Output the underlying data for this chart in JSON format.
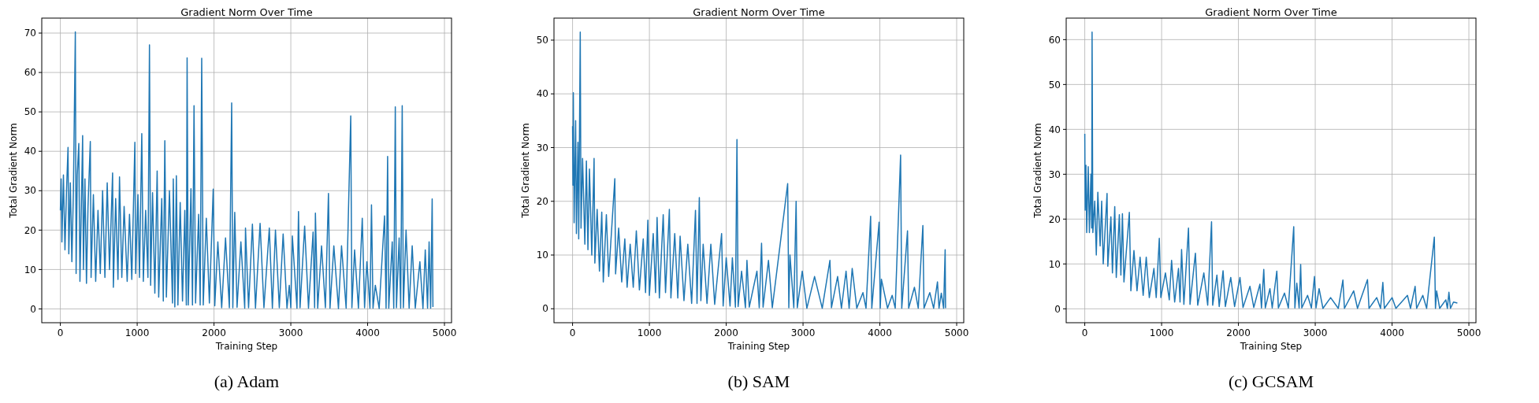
{
  "chart_data": [
    {
      "type": "line",
      "title": "Gradient Norm Over Time",
      "xlabel": "Training Step",
      "ylabel": "Total Gradient Norm",
      "annotations": [
        "(a) Adam"
      ],
      "color": "#1f77b4",
      "grid": true,
      "xlim": [
        -242,
        5092
      ],
      "xticks": [
        0,
        1000,
        2000,
        3000,
        4000,
        5000
      ],
      "ylim": [
        -3.5,
        73.8
      ],
      "yticks": [
        0,
        10,
        20,
        30,
        40,
        50,
        60,
        70
      ],
      "x": [
        0,
        10,
        20,
        40,
        60,
        80,
        100,
        110,
        130,
        150,
        170,
        195,
        205,
        220,
        240,
        255,
        275,
        290,
        300,
        320,
        340,
        360,
        390,
        400,
        430,
        460,
        490,
        520,
        550,
        580,
        610,
        640,
        680,
        690,
        720,
        750,
        770,
        800,
        830,
        870,
        900,
        930,
        970,
        980,
        1010,
        1030,
        1060,
        1080,
        1110,
        1140,
        1160,
        1175,
        1200,
        1230,
        1260,
        1280,
        1320,
        1340,
        1360,
        1380,
        1420,
        1460,
        1470,
        1490,
        1510,
        1530,
        1560,
        1590,
        1620,
        1640,
        1650,
        1665,
        1700,
        1720,
        1740,
        1760,
        1800,
        1820,
        1840,
        1860,
        1900,
        1940,
        1990,
        2010,
        2050,
        2100,
        2150,
        2200,
        2230,
        2245,
        2270,
        2300,
        2350,
        2400,
        2410,
        2450,
        2500,
        2540,
        2600,
        2650,
        2720,
        2760,
        2800,
        2850,
        2900,
        2950,
        2980,
        3000,
        3020,
        3080,
        3100,
        3120,
        3180,
        3230,
        3290,
        3310,
        3320,
        3350,
        3400,
        3450,
        3490,
        3510,
        3560,
        3620,
        3660,
        3720,
        3780,
        3795,
        3830,
        3880,
        3930,
        3960,
        3990,
        4030,
        4050,
        4070,
        4100,
        4150,
        4220,
        4240,
        4260,
        4275,
        4320,
        4340,
        4360,
        4375,
        4410,
        4430,
        4450,
        4465,
        4500,
        4540,
        4580,
        4620,
        4680,
        4720,
        4750,
        4780,
        4800,
        4820,
        4840,
        4850
      ],
      "values": [
        25,
        33,
        17,
        34,
        15,
        30,
        41,
        14,
        32,
        12,
        30,
        70.3,
        9,
        34,
        42,
        7,
        28,
        44,
        10,
        33,
        6.5,
        26,
        42.5,
        8,
        29,
        7,
        25,
        9,
        30,
        8,
        32,
        10,
        34.5,
        5.5,
        28,
        7.5,
        33.5,
        8,
        26,
        7,
        24,
        7.5,
        42.3,
        9,
        29,
        8,
        44.5,
        7,
        25,
        8,
        67,
        6,
        29.5,
        4,
        35,
        3,
        28,
        2,
        42.7,
        3,
        30,
        1.5,
        33,
        0.5,
        33.8,
        1,
        27,
        2,
        25,
        1,
        63.7,
        1,
        30.5,
        1,
        51.6,
        1.5,
        24,
        1,
        63.6,
        1,
        23,
        1.5,
        30.4,
        0.8,
        17,
        0.3,
        18,
        0.3,
        52.3,
        0.3,
        24.5,
        0.4,
        17,
        0.2,
        20.5,
        0.3,
        21.5,
        0.2,
        21.7,
        0.3,
        20.5,
        0.2,
        20,
        0.3,
        19,
        0.2,
        6,
        0.3,
        18.5,
        0.2,
        24.7,
        0.3,
        21,
        0.2,
        19.5,
        0.3,
        24.3,
        0.2,
        16,
        0.3,
        29.3,
        0.2,
        16,
        0.1,
        16,
        0.2,
        49,
        0.3,
        15,
        0.2,
        23,
        0.3,
        12,
        0.2,
        26.4,
        0.2,
        6,
        0.1,
        23.6,
        0.2,
        38.7,
        0.2,
        17,
        0.2,
        51.3,
        0.3,
        18,
        0.2,
        51.6,
        0.3,
        20,
        0.2,
        16,
        0.2,
        12,
        0.1,
        15,
        0.2,
        17,
        0.2,
        27.9,
        0.5
      ]
    },
    {
      "type": "line",
      "title": "Gradient Norm Over Time",
      "xlabel": "Training Step",
      "ylabel": "Total Gradient Norm",
      "annotations": [
        "(b) SAM"
      ],
      "color": "#1f77b4",
      "grid": true,
      "xlim": [
        -242,
        5092
      ],
      "xticks": [
        0,
        1000,
        2000,
        3000,
        4000,
        5000
      ],
      "ylim": [
        -2.6,
        54.1
      ],
      "yticks": [
        0,
        10,
        20,
        30,
        40,
        50
      ],
      "x": [
        0,
        5,
        10,
        20,
        40,
        50,
        70,
        80,
        100,
        110,
        130,
        160,
        180,
        200,
        220,
        250,
        280,
        290,
        320,
        350,
        380,
        400,
        440,
        470,
        550,
        560,
        600,
        640,
        680,
        710,
        750,
        790,
        830,
        870,
        920,
        950,
        980,
        1000,
        1050,
        1080,
        1100,
        1130,
        1180,
        1210,
        1260,
        1280,
        1330,
        1370,
        1400,
        1450,
        1500,
        1550,
        1600,
        1620,
        1650,
        1670,
        1700,
        1750,
        1800,
        1850,
        1940,
        1960,
        2000,
        2050,
        2080,
        2120,
        2140,
        2155,
        2200,
        2250,
        2270,
        2300,
        2400,
        2430,
        2460,
        2480,
        2550,
        2600,
        2800,
        2815,
        2830,
        2880,
        2910,
        2925,
        2990,
        3050,
        3150,
        3250,
        3350,
        3370,
        3450,
        3500,
        3560,
        3600,
        3640,
        3700,
        3780,
        3820,
        3880,
        3895,
        3990,
        4005,
        4020,
        4100,
        4160,
        4200,
        4270,
        4285,
        4360,
        4375,
        4450,
        4500,
        4560,
        4575,
        4650,
        4700,
        4750,
        4770,
        4800,
        4830,
        4850,
        4855
      ],
      "values": [
        34,
        23,
        40.2,
        16,
        35,
        14,
        31,
        13,
        51.5,
        15,
        28,
        12,
        27.5,
        11,
        26,
        10,
        28,
        8.5,
        18.5,
        7,
        18,
        5,
        17.5,
        6,
        24.2,
        6.5,
        15,
        5,
        13,
        4,
        12,
        4,
        14.5,
        3.5,
        13,
        3,
        16.5,
        2.5,
        14,
        3,
        17,
        2,
        17.5,
        3,
        18.5,
        2,
        14,
        2,
        13.5,
        1.5,
        12,
        1,
        18.3,
        1,
        20.7,
        1.5,
        12,
        1,
        12,
        0.8,
        14,
        0.5,
        9.5,
        0.5,
        9.5,
        0.3,
        31.5,
        0.4,
        7,
        0.2,
        9,
        0.3,
        7,
        0.2,
        12.2,
        0.3,
        9,
        0.2,
        23.3,
        0.2,
        10,
        0.2,
        20,
        0.2,
        7,
        0.1,
        6,
        0.1,
        9,
        0.2,
        6,
        0.1,
        7,
        0.1,
        7.5,
        0.1,
        3,
        0.1,
        17.2,
        0.1,
        16.1,
        0.1,
        5.5,
        0.1,
        2.5,
        0.1,
        28.6,
        0.1,
        14.5,
        0.1,
        4,
        0.1,
        15.5,
        0.1,
        3,
        0.1,
        5,
        0.1,
        2.9,
        0.1,
        11,
        0.1
      ]
    },
    {
      "type": "line",
      "title": "Gradient Norm Over Time",
      "xlabel": "Training Step",
      "ylabel": "Total Gradient Norm",
      "annotations": [
        "(c) GCSAM"
      ],
      "color": "#1f77b4",
      "grid": true,
      "xlim": [
        -242,
        5092
      ],
      "xticks": [
        0,
        1000,
        2000,
        3000,
        4000,
        5000
      ],
      "ylim": [
        -3.1,
        64.8
      ],
      "yticks": [
        0,
        10,
        20,
        30,
        40,
        50,
        60
      ],
      "x": [
        0,
        5,
        15,
        25,
        45,
        60,
        80,
        90,
        95,
        105,
        130,
        150,
        170,
        200,
        220,
        240,
        290,
        300,
        340,
        360,
        390,
        410,
        450,
        470,
        490,
        510,
        580,
        600,
        640,
        680,
        720,
        760,
        800,
        840,
        900,
        930,
        970,
        990,
        1050,
        1100,
        1130,
        1170,
        1220,
        1240,
        1260,
        1290,
        1350,
        1370,
        1440,
        1470,
        1550,
        1600,
        1650,
        1665,
        1720,
        1750,
        1800,
        1830,
        1900,
        1950,
        2020,
        2060,
        2150,
        2200,
        2280,
        2300,
        2330,
        2350,
        2410,
        2440,
        2500,
        2520,
        2600,
        2650,
        2720,
        2735,
        2760,
        2790,
        2810,
        2825,
        2900,
        2950,
        2990,
        3010,
        3050,
        3100,
        3200,
        3300,
        3360,
        3380,
        3500,
        3550,
        3680,
        3700,
        3800,
        3850,
        3880,
        3900,
        4000,
        4050,
        4200,
        4240,
        4300,
        4320,
        4400,
        4450,
        4550,
        4565,
        4580,
        4620,
        4700,
        4720,
        4740,
        4760,
        4800,
        4850
      ],
      "values": [
        39,
        22,
        32,
        17,
        31.7,
        17,
        30,
        18,
        61.7,
        17,
        24,
        12,
        26,
        14,
        24,
        10,
        25.7,
        9.5,
        20.5,
        8,
        22.8,
        7,
        21,
        7.5,
        21.2,
        6,
        21.5,
        4,
        13,
        4,
        11.5,
        3,
        11.5,
        2.5,
        9,
        2.5,
        15.7,
        2.5,
        8,
        2,
        10.8,
        1.5,
        9,
        1.5,
        13.2,
        1,
        18,
        1,
        12.4,
        0.8,
        8,
        0.8,
        19.4,
        0.8,
        7.5,
        0.5,
        8.5,
        0.5,
        7,
        0.5,
        7,
        0.3,
        5,
        0.3,
        5.5,
        0.2,
        8.8,
        0.2,
        4.5,
        0.2,
        8.4,
        0.2,
        3.5,
        0.2,
        18.3,
        0.2,
        5.7,
        0.2,
        9.9,
        0.2,
        3,
        0.2,
        7.2,
        0.2,
        4.5,
        0.1,
        2.5,
        0.1,
        6.4,
        0.1,
        4,
        0.1,
        6.5,
        0.1,
        2.5,
        0.1,
        5.9,
        0.1,
        2.5,
        0.1,
        3,
        0.1,
        5,
        0.1,
        3,
        0.1,
        16,
        0.1,
        4,
        0.1,
        2,
        0.1,
        3.7,
        0.1,
        1.5,
        1.3
      ]
    }
  ]
}
